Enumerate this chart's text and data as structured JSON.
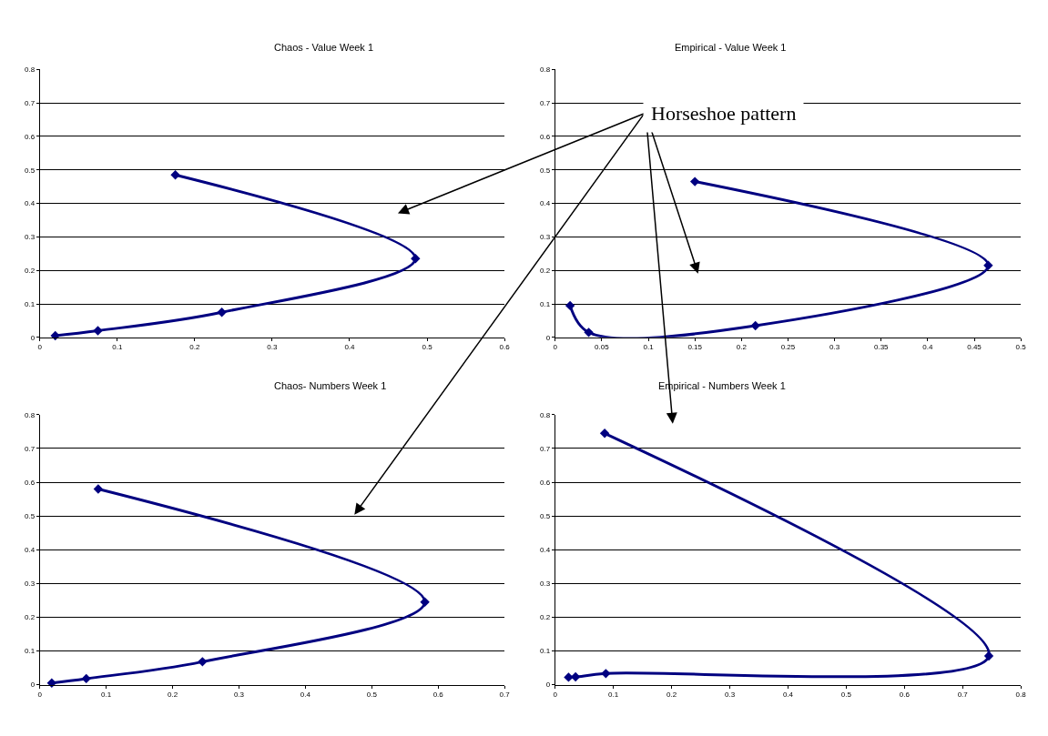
{
  "chart_data": [
    {
      "type": "line",
      "title": "Chaos - Value Week 1",
      "marker": "diamond",
      "grid": "y",
      "line_style": "solid",
      "x": [
        0.02,
        0.075,
        0.235,
        0.485,
        0.175
      ],
      "series": [
        {
          "color": "#000080",
          "values": [
            0.005,
            0.02,
            0.075,
            0.235,
            0.485
          ]
        }
      ],
      "xlim": [
        0,
        0.6
      ],
      "xticks": [
        0,
        0.1,
        0.2,
        0.3,
        0.4,
        0.5,
        0.6
      ],
      "ylim": [
        0,
        0.8
      ],
      "yticks": [
        0,
        0.1,
        0.2,
        0.3,
        0.4,
        0.5,
        0.6,
        0.7,
        0.8
      ]
    },
    {
      "type": "line",
      "title": "Empirical - Value Week 1",
      "marker": "diamond",
      "grid": "y",
      "line_style": "solid",
      "annotations": [
        "Horseshoe pattern"
      ],
      "x": [
        0.016,
        0.036,
        0.215,
        0.465,
        0.15
      ],
      "series": [
        {
          "color": "#000080",
          "values": [
            0.095,
            0.015,
            0.035,
            0.215,
            0.465
          ]
        }
      ],
      "xlim": [
        0,
        0.5
      ],
      "xticks": [
        0,
        0.05,
        0.1,
        0.15,
        0.2,
        0.25,
        0.3,
        0.35,
        0.4,
        0.45,
        0.5
      ],
      "ylim": [
        0,
        0.8
      ],
      "yticks": [
        0,
        0.1,
        0.2,
        0.3,
        0.4,
        0.5,
        0.6,
        0.7,
        0.8
      ]
    },
    {
      "type": "line",
      "title": "Chaos- Numbers Week 1",
      "marker": "diamond",
      "grid": "y",
      "line_style": "solid",
      "x": [
        0.018,
        0.07,
        0.245,
        0.58,
        0.088
      ],
      "series": [
        {
          "color": "#000080",
          "values": [
            0.005,
            0.018,
            0.068,
            0.245,
            0.58
          ]
        }
      ],
      "xlim": [
        0,
        0.7
      ],
      "xticks": [
        0,
        0.1,
        0.2,
        0.3,
        0.4,
        0.5,
        0.6,
        0.7
      ],
      "ylim": [
        0,
        0.8
      ],
      "yticks": [
        0,
        0.1,
        0.2,
        0.3,
        0.4,
        0.5,
        0.6,
        0.7,
        0.8
      ]
    },
    {
      "type": "line",
      "title": "Empirical - Numbers Week 1",
      "marker": "diamond",
      "grid": "y",
      "line_style": "solid",
      "x": [
        0.023,
        0.035,
        0.087,
        0.745,
        0.085
      ],
      "series": [
        {
          "color": "#000080",
          "values": [
            0.022,
            0.023,
            0.033,
            0.085,
            0.745
          ]
        }
      ],
      "xlim": [
        0,
        0.8
      ],
      "xticks": [
        0,
        0.1,
        0.2,
        0.3,
        0.4,
        0.5,
        0.6,
        0.7,
        0.8
      ],
      "ylim": [
        0,
        0.8
      ],
      "yticks": [
        0,
        0.1,
        0.2,
        0.3,
        0.4,
        0.5,
        0.6,
        0.7,
        0.8
      ]
    }
  ]
}
